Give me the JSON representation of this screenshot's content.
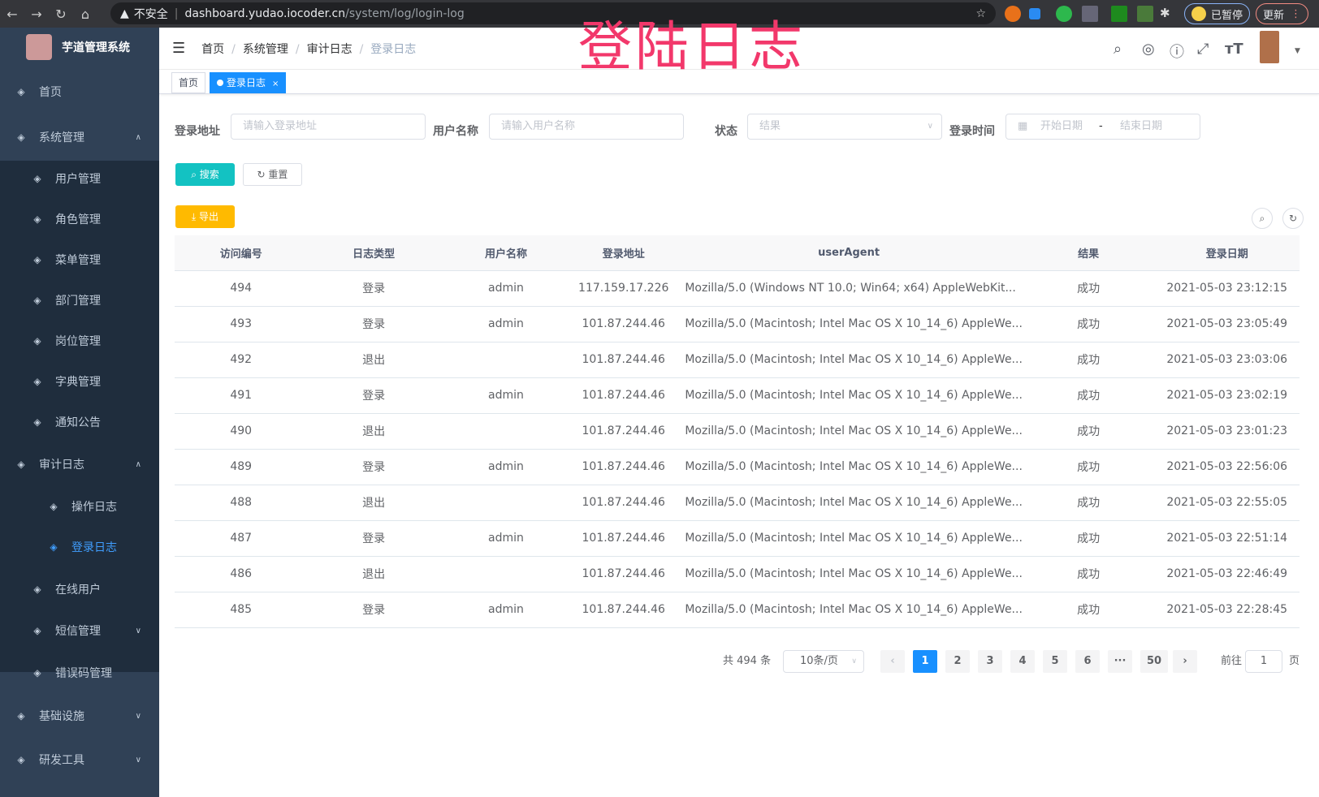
{
  "browser": {
    "url_host": "dashboard.yudao.iocoder.cn",
    "url_path": "/system/log/login-log",
    "security": "不安全",
    "paused": "已暂停",
    "update": "更新"
  },
  "sidebar": {
    "title": "芋道管理系统",
    "items": [
      {
        "label": "首页",
        "icon": "dashboard-icon"
      },
      {
        "label": "系统管理",
        "icon": "gear-icon"
      },
      {
        "label": "用户管理",
        "icon": "user-icon"
      },
      {
        "label": "角色管理",
        "icon": "role-icon"
      },
      {
        "label": "菜单管理",
        "icon": "menu-icon"
      },
      {
        "label": "部门管理",
        "icon": "tree-icon"
      },
      {
        "label": "岗位管理",
        "icon": "post-icon"
      },
      {
        "label": "字典管理",
        "icon": "dict-icon"
      },
      {
        "label": "通知公告",
        "icon": "message-icon"
      },
      {
        "label": "审计日志",
        "icon": "log-icon"
      },
      {
        "label": "操作日志",
        "icon": "form-icon"
      },
      {
        "label": "登录日志",
        "icon": "logininfor-icon"
      },
      {
        "label": "在线用户",
        "icon": "online-icon"
      },
      {
        "label": "短信管理",
        "icon": "validcode-icon"
      },
      {
        "label": "错误码管理",
        "icon": "code-icon"
      },
      {
        "label": "基础设施",
        "icon": "monitor-icon"
      },
      {
        "label": "研发工具",
        "icon": "tool-icon"
      }
    ]
  },
  "breadcrumb": [
    "首页",
    "系统管理",
    "审计日志",
    "登录日志"
  ],
  "overlay_title": "登陆日志",
  "tags": [
    {
      "label": "首页"
    },
    {
      "label": "登录日志"
    }
  ],
  "filters": {
    "ip_label": "登录地址",
    "ip_placeholder": "请输入登录地址",
    "user_label": "用户名称",
    "user_placeholder": "请输入用户名称",
    "status_label": "状态",
    "status_placeholder": "结果",
    "time_label": "登录时间",
    "start_placeholder": "开始日期",
    "end_placeholder": "结束日期",
    "sep": "-"
  },
  "buttons": {
    "search": "搜索",
    "reset": "重置",
    "export": "导出"
  },
  "colors": {
    "primary": "#1890ff",
    "search": "#13c2c2",
    "export": "#ffba00",
    "sidebar": "#304156"
  },
  "table": {
    "columns": [
      "访问编号",
      "日志类型",
      "用户名称",
      "登录地址",
      "userAgent",
      "结果",
      "登录日期"
    ],
    "rows": [
      [
        "494",
        "登录",
        "admin",
        "117.159.17.226",
        "Mozilla/5.0 (Windows NT 10.0; Win64; x64) AppleWebKit...",
        "成功",
        "2021-05-03 23:12:15"
      ],
      [
        "493",
        "登录",
        "admin",
        "101.87.244.46",
        "Mozilla/5.0 (Macintosh; Intel Mac OS X 10_14_6) AppleWe...",
        "成功",
        "2021-05-03 23:05:49"
      ],
      [
        "492",
        "退出",
        "",
        "101.87.244.46",
        "Mozilla/5.0 (Macintosh; Intel Mac OS X 10_14_6) AppleWe...",
        "成功",
        "2021-05-03 23:03:06"
      ],
      [
        "491",
        "登录",
        "admin",
        "101.87.244.46",
        "Mozilla/5.0 (Macintosh; Intel Mac OS X 10_14_6) AppleWe...",
        "成功",
        "2021-05-03 23:02:19"
      ],
      [
        "490",
        "退出",
        "",
        "101.87.244.46",
        "Mozilla/5.0 (Macintosh; Intel Mac OS X 10_14_6) AppleWe...",
        "成功",
        "2021-05-03 23:01:23"
      ],
      [
        "489",
        "登录",
        "admin",
        "101.87.244.46",
        "Mozilla/5.0 (Macintosh; Intel Mac OS X 10_14_6) AppleWe...",
        "成功",
        "2021-05-03 22:56:06"
      ],
      [
        "488",
        "退出",
        "",
        "101.87.244.46",
        "Mozilla/5.0 (Macintosh; Intel Mac OS X 10_14_6) AppleWe...",
        "成功",
        "2021-05-03 22:55:05"
      ],
      [
        "487",
        "登录",
        "admin",
        "101.87.244.46",
        "Mozilla/5.0 (Macintosh; Intel Mac OS X 10_14_6) AppleWe...",
        "成功",
        "2021-05-03 22:51:14"
      ],
      [
        "486",
        "退出",
        "",
        "101.87.244.46",
        "Mozilla/5.0 (Macintosh; Intel Mac OS X 10_14_6) AppleWe...",
        "成功",
        "2021-05-03 22:46:49"
      ],
      [
        "485",
        "登录",
        "admin",
        "101.87.244.46",
        "Mozilla/5.0 (Macintosh; Intel Mac OS X 10_14_6) AppleWe...",
        "成功",
        "2021-05-03 22:28:45"
      ]
    ]
  },
  "pagination": {
    "total": "共 494 条",
    "page_size": "10条/页",
    "pages": [
      "1",
      "2",
      "3",
      "4",
      "5",
      "6",
      "···",
      "50"
    ],
    "current": "1",
    "goto_label": "前往",
    "goto_value": "1",
    "goto_suffix": "页"
  }
}
